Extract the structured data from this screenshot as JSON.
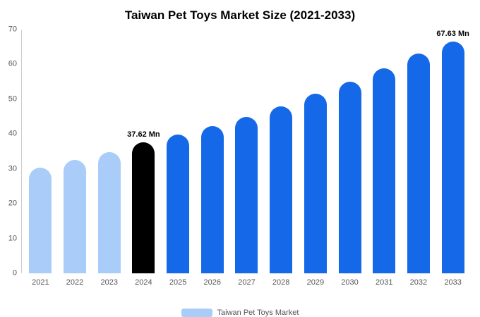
{
  "chart_data": {
    "type": "bar",
    "title": "Taiwan Pet Toys Market Size (2021-2033)",
    "categories": [
      "2021",
      "2022",
      "2023",
      "2024",
      "2025",
      "2026",
      "2027",
      "2028",
      "2029",
      "2030",
      "2031",
      "2032",
      "2033"
    ],
    "values": [
      30.3,
      32.6,
      34.9,
      37.62,
      39.9,
      42.3,
      45.0,
      48.0,
      51.6,
      55.0,
      58.9,
      63.1,
      67.63
    ],
    "bar_colors": [
      "#a9cdf8",
      "#a9cdf8",
      "#a9cdf8",
      "#000000",
      "#1569e8",
      "#1569e8",
      "#1569e8",
      "#1569e8",
      "#1569e8",
      "#1569e8",
      "#1569e8",
      "#1569e8",
      "#1569e8"
    ],
    "annotations": [
      {
        "category": "2024",
        "text": "37.62 Mn"
      },
      {
        "category": "2033",
        "text": "67.63 Mn"
      }
    ],
    "ylim": [
      0,
      70
    ],
    "yticks": [
      0,
      10,
      20,
      30,
      40,
      50,
      60,
      70
    ],
    "grid": false,
    "legend_position": "bottom",
    "legend": [
      {
        "label": "Taiwan Pet Toys Market",
        "color": "#a9cdf8"
      }
    ],
    "xlabel": "",
    "ylabel": ""
  },
  "colors": {
    "axis_text": "#555555",
    "axis_line": "#cccccc",
    "title_text": "#000000",
    "background": "#ffffff"
  }
}
